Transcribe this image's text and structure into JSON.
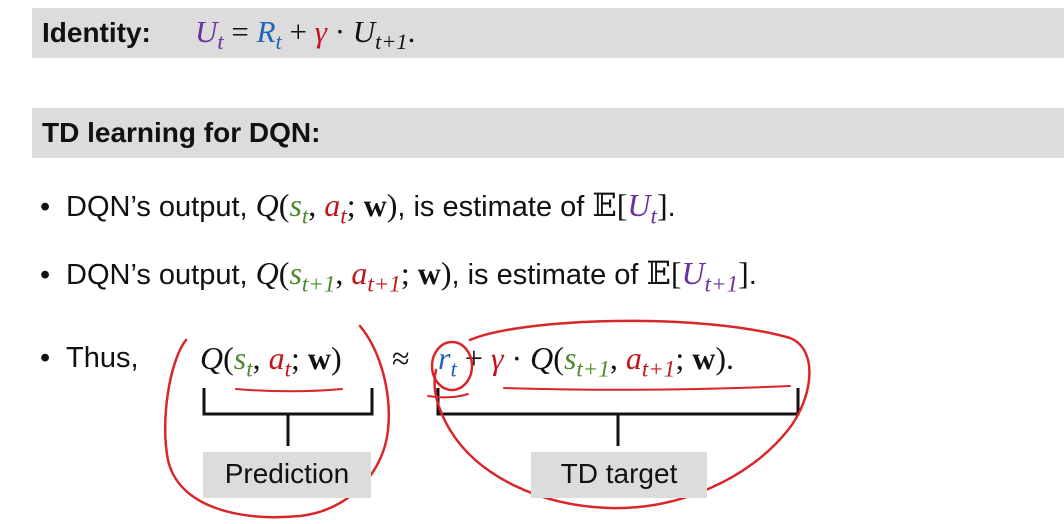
{
  "identity": {
    "label": "Identity:",
    "U": "U",
    "t": "t",
    "eq": " = ",
    "R": "R",
    "plus": " + ",
    "gamma": "γ",
    "dot": " · ",
    "t_plus_1": "t+1",
    "period": "."
  },
  "section": {
    "title": "TD learning for DQN:"
  },
  "bullets": {
    "b1": {
      "text_pre": "DQN’s output, ",
      "text_mid": ", is estimate of ",
      "text_end": "."
    },
    "b2": {
      "text_pre": "DQN’s output, ",
      "text_mid": ", is estimate of ",
      "text_end": "."
    },
    "b3": {
      "text_pre": "Thus,"
    }
  },
  "math": {
    "Q": "Q",
    "open": "(",
    "close": ")",
    "s": "s",
    "a": "a",
    "w": "w",
    "comma": ", ",
    "semicolon": "; ",
    "t": "t",
    "t_plus_1": "t+1",
    "E": "𝔼",
    "lbr": "[",
    "rbr": "]",
    "U": "U",
    "approx": " ≈ ",
    "r": "r",
    "plus": " + ",
    "gamma": "γ",
    "dot": " · ",
    "period": "."
  },
  "labels": {
    "prediction": "Prediction",
    "td_target": "TD target"
  },
  "colors": {
    "purple": "#6a2fa0",
    "blue": "#1f63b8",
    "red": "#c2151b",
    "green": "#4a8a2a",
    "annotation": "#d9262a",
    "bar_bg": "#dcdcdc"
  }
}
